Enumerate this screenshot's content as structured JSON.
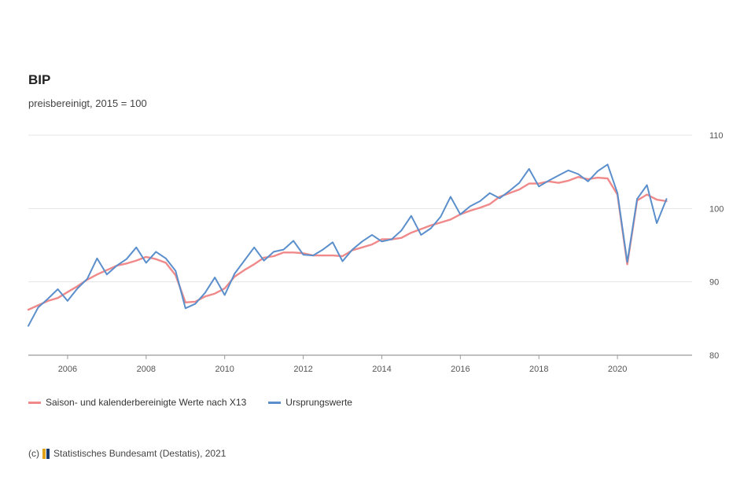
{
  "chart_data": {
    "type": "line",
    "title": "BIP",
    "subtitle": "preisbereinigt, 2015 = 100",
    "ylim": [
      80,
      110
    ],
    "yticks": [
      80,
      90,
      100,
      110
    ],
    "xlim": [
      2005,
      2021.9
    ],
    "xticks": [
      2006,
      2008,
      2010,
      2012,
      2014,
      2016,
      2018,
      2020
    ],
    "grid": "horizontal",
    "legend_position": "bottom-left",
    "series": [
      {
        "name": "Saison- und kalenderbereinigte Werte nach X13",
        "color": "#f08a8a",
        "x": [
          2005.0,
          2005.25,
          2005.5,
          2005.75,
          2006.0,
          2006.25,
          2006.5,
          2006.75,
          2007.0,
          2007.25,
          2007.5,
          2007.75,
          2008.0,
          2008.25,
          2008.5,
          2008.75,
          2009.0,
          2009.25,
          2009.5,
          2009.75,
          2010.0,
          2010.25,
          2010.5,
          2010.75,
          2011.0,
          2011.25,
          2011.5,
          2011.75,
          2012.0,
          2012.25,
          2012.5,
          2012.75,
          2013.0,
          2013.25,
          2013.5,
          2013.75,
          2014.0,
          2014.25,
          2014.5,
          2014.75,
          2015.0,
          2015.25,
          2015.5,
          2015.75,
          2016.0,
          2016.25,
          2016.5,
          2016.75,
          2017.0,
          2017.25,
          2017.5,
          2017.75,
          2018.0,
          2018.25,
          2018.5,
          2018.75,
          2019.0,
          2019.25,
          2019.5,
          2019.75,
          2020.0,
          2020.25,
          2020.5,
          2020.75,
          2021.0,
          2021.25
        ],
        "values": [
          86.2,
          86.8,
          87.4,
          87.8,
          88.6,
          89.4,
          90.3,
          91.0,
          91.6,
          92.2,
          92.5,
          92.9,
          93.4,
          93.1,
          92.6,
          90.9,
          87.2,
          87.3,
          88.0,
          88.4,
          89.1,
          90.7,
          91.6,
          92.4,
          93.3,
          93.5,
          94.0,
          94.0,
          93.9,
          93.6,
          93.6,
          93.6,
          93.5,
          94.3,
          94.7,
          95.1,
          95.8,
          95.8,
          96.0,
          96.7,
          97.2,
          97.7,
          98.1,
          98.5,
          99.2,
          99.7,
          100.1,
          100.6,
          101.6,
          102.1,
          102.6,
          103.4,
          103.4,
          103.7,
          103.5,
          103.8,
          104.3,
          104.0,
          104.2,
          104.1,
          101.9,
          92.4,
          101.1,
          101.9,
          101.2,
          101.0
        ]
      },
      {
        "name": "Ursprungswerte",
        "color": "#5b8fcc",
        "x": [
          2005.0,
          2005.25,
          2005.5,
          2005.75,
          2006.0,
          2006.25,
          2006.5,
          2006.75,
          2007.0,
          2007.25,
          2007.5,
          2007.75,
          2008.0,
          2008.25,
          2008.5,
          2008.75,
          2009.0,
          2009.25,
          2009.5,
          2009.75,
          2010.0,
          2010.25,
          2010.5,
          2010.75,
          2011.0,
          2011.25,
          2011.5,
          2011.75,
          2012.0,
          2012.25,
          2012.5,
          2012.75,
          2013.0,
          2013.25,
          2013.5,
          2013.75,
          2014.0,
          2014.25,
          2014.5,
          2014.75,
          2015.0,
          2015.25,
          2015.5,
          2015.75,
          2016.0,
          2016.25,
          2016.5,
          2016.75,
          2017.0,
          2017.25,
          2017.5,
          2017.75,
          2018.0,
          2018.25,
          2018.5,
          2018.75,
          2019.0,
          2019.25,
          2019.5,
          2019.75,
          2020.0,
          2020.25,
          2020.5,
          2020.75,
          2021.0,
          2021.25
        ],
        "values": [
          84.0,
          86.5,
          87.7,
          89.0,
          87.4,
          89.1,
          90.4,
          93.2,
          91.0,
          92.2,
          93.1,
          94.7,
          92.6,
          94.1,
          93.2,
          91.5,
          86.4,
          87.0,
          88.5,
          90.6,
          88.2,
          91.1,
          92.9,
          94.7,
          92.9,
          94.1,
          94.4,
          95.6,
          93.7,
          93.6,
          94.4,
          95.4,
          92.8,
          94.4,
          95.5,
          96.4,
          95.5,
          95.8,
          97.0,
          99.0,
          96.4,
          97.3,
          98.9,
          101.6,
          99.2,
          100.3,
          101.0,
          102.1,
          101.4,
          102.4,
          103.5,
          105.4,
          103.0,
          103.8,
          104.5,
          105.2,
          104.7,
          103.7,
          105.1,
          106.0,
          102.1,
          92.7,
          101.3,
          103.2,
          98.0,
          101.3
        ]
      }
    ]
  },
  "source": {
    "text_prefix": "(c)",
    "text": "Statistisches Bundesamt (Destatis), 2021"
  }
}
